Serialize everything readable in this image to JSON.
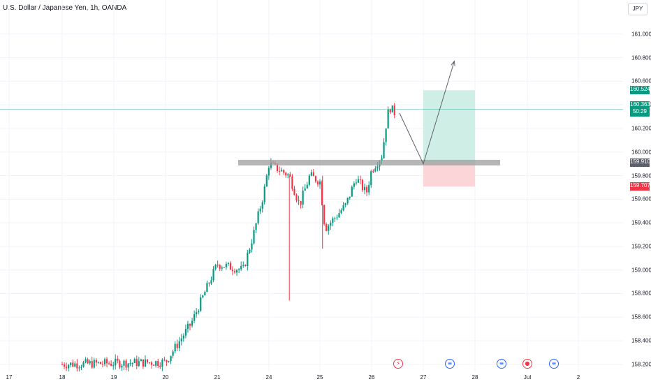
{
  "header": {
    "title": "U.S. Dollar / Japanese Yen, 1h, OANDA"
  },
  "currency_button": "JPY",
  "price_labels": {
    "target": "160.524",
    "current": "160.363",
    "countdown": "50:29",
    "entry": "159.910",
    "stop": "159.707"
  },
  "colors": {
    "up": "#089981",
    "down": "#f23645",
    "target_zone": "#cfeee6",
    "stop_zone": "#fbd5d8",
    "level_band": "#9e9e9e",
    "current_line": "#089981"
  },
  "events": [
    {
      "icon": "lightning-icon",
      "glyph": "⚡",
      "date": "Jun 26"
    },
    {
      "icon": "us-flag-icon",
      "glyph": "≡",
      "date": "Jun 27"
    },
    {
      "icon": "us-flag-icon",
      "glyph": "≡",
      "date": "Jun 28"
    },
    {
      "icon": "dot-event-icon",
      "glyph": "●",
      "date": "Jun 29"
    },
    {
      "icon": "us-flag-icon",
      "glyph": "≡",
      "date": "Jun 30"
    }
  ],
  "chart_data": {
    "type": "candlestick",
    "ylim": [
      158.14,
      161.2
    ],
    "grid": true,
    "y_ticks": [
      "161.000",
      "160.800",
      "160.600",
      "160.400",
      "160.200",
      "160.000",
      "159.800",
      "159.600",
      "159.400",
      "159.200",
      "159.000",
      "158.800",
      "158.600",
      "158.400",
      "158.200"
    ],
    "x_ticks": [
      "17",
      "18",
      "19",
      "20",
      "21",
      "24",
      "25",
      "26",
      "27",
      "28",
      "Jul",
      "2"
    ],
    "key_level": 159.91,
    "current_price": 160.363,
    "position": {
      "entry": 159.91,
      "target": 160.524,
      "stop": 159.707,
      "entry_date": "Jun 27",
      "exit_date": "Jun 28"
    },
    "projection": [
      {
        "date": "Jun 26",
        "price": 160.33
      },
      {
        "date": "Jun 27",
        "price": 159.9
      },
      {
        "date": "Jun 27.6",
        "price": 160.77
      }
    ],
    "anchors": [
      {
        "date": "Jun 18",
        "price": 158.2
      },
      {
        "date": "Jun 20",
        "price": 158.22
      },
      {
        "date": "Jun 20.5",
        "price": 158.55
      },
      {
        "date": "Jun 21",
        "price": 159.05
      },
      {
        "date": "Jun 21.5",
        "price": 159.0
      },
      {
        "date": "Jun 21.7",
        "price": 159.3
      },
      {
        "date": "Jun 21.9",
        "price": 159.65
      },
      {
        "date": "Jun 24",
        "price": 159.9
      },
      {
        "date": "Jun 24.4",
        "price": 159.8
      },
      {
        "date": "Jun 24.6",
        "price": 159.55
      },
      {
        "date": "Jun 24.8",
        "price": 159.8
      },
      {
        "date": "Jun 25",
        "price": 159.75
      },
      {
        "date": "Jun 25.1",
        "price": 159.35
      },
      {
        "date": "Jun 25.5",
        "price": 159.55
      },
      {
        "date": "Jun 25.7",
        "price": 159.78
      },
      {
        "date": "Jun 25.9",
        "price": 159.65
      },
      {
        "date": "Jun 26",
        "price": 159.85
      },
      {
        "date": "Jun 26.2",
        "price": 159.97
      },
      {
        "date": "Jun 26.3",
        "price": 160.3
      },
      {
        "date": "Jun 26.35",
        "price": 160.38
      },
      {
        "date": "Jun 26.45",
        "price": 160.33
      }
    ],
    "wicks": [
      {
        "date": "Jun 24.4",
        "low": 158.74
      },
      {
        "date": "Jun 25.05",
        "low": 159.18
      }
    ]
  }
}
